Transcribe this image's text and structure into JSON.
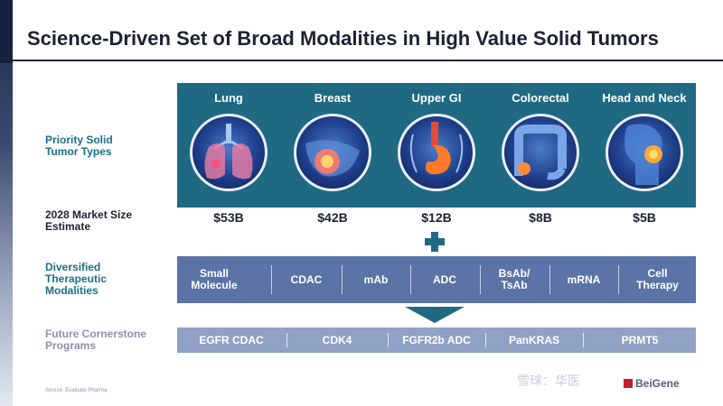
{
  "title": "Science-Driven Set of Broad Modalities in High Value Solid Tumors",
  "row_labels": {
    "tumor_types": "Priority Solid\nTumor Types",
    "market_size": "2028 Market Size\nEstimate",
    "modalities": "Diversified\nTherapeutic\nModalities",
    "programs": "Future Cornerstone\nPrograms"
  },
  "tumors": [
    {
      "name": "Lung",
      "market": "$53B",
      "icon": "lung-icon"
    },
    {
      "name": "Breast",
      "market": "$42B",
      "icon": "breast-icon"
    },
    {
      "name": "Upper GI",
      "market": "$12B",
      "icon": "stomach-icon"
    },
    {
      "name": "Colorectal",
      "market": "$8B",
      "icon": "colon-icon"
    },
    {
      "name": "Head and Neck",
      "market": "$5B",
      "icon": "head-neck-icon"
    }
  ],
  "modalities": [
    "Small\nMolecule",
    "CDAC",
    "mAb",
    "ADC",
    "BsAb/\nTsAb",
    "mRNA",
    "Cell\nTherapy"
  ],
  "programs": [
    "EGFR CDAC",
    "CDK4",
    "FGFR2b ADC",
    "PanKRAS",
    "PRMT5"
  ],
  "source": "Source: Evaluate Pharma",
  "watermark": "雪球：华医",
  "logo": "BeiGene",
  "colors": {
    "teal": "#1f6a82",
    "modality_blue": "#5b73a6",
    "program_blue": "#8fa1c4",
    "title": "#1c2233"
  }
}
